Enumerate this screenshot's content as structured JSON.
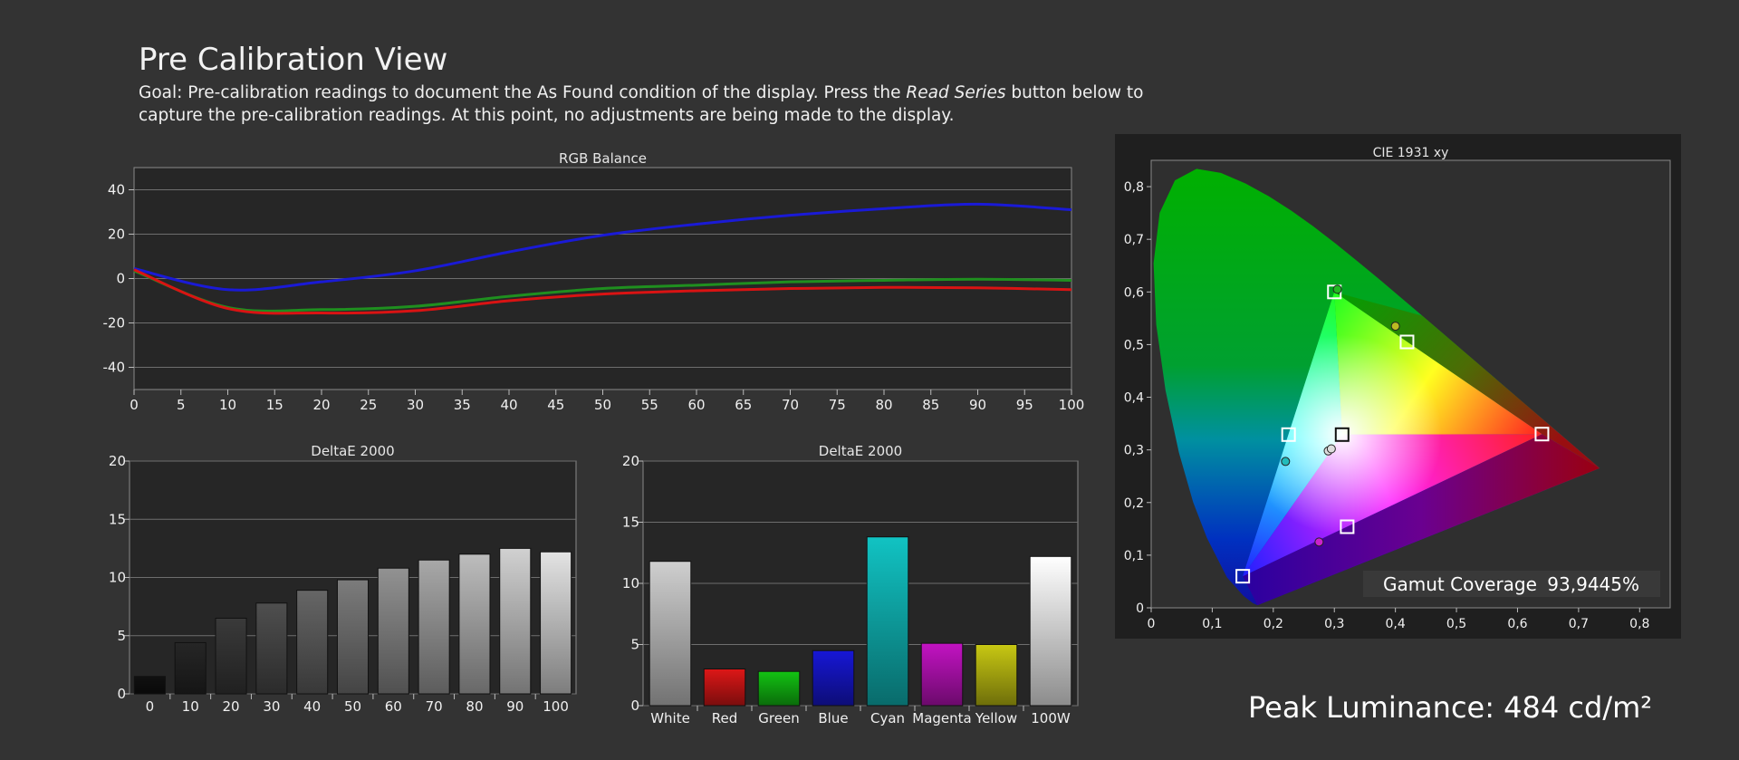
{
  "header": {
    "title": "Pre Calibration View",
    "goal_prefix": "Goal: Pre-calibration readings to document the As Found condition of the display. Press the ",
    "goal_emphasis": "Read Series",
    "goal_suffix": " button below to capture the pre-calibration readings. At this point, no adjustments are being made to the display."
  },
  "peak_luminance": {
    "label": "Peak Luminance:",
    "value": "484 cd/m²"
  },
  "chart_data": [
    {
      "id": "rgb_balance",
      "type": "line",
      "title": "RGB Balance",
      "x": [
        0,
        10,
        20,
        30,
        40,
        50,
        60,
        70,
        80,
        90,
        100
      ],
      "xticks": [
        0,
        5,
        10,
        15,
        20,
        25,
        30,
        35,
        40,
        45,
        50,
        55,
        60,
        65,
        70,
        75,
        80,
        85,
        90,
        95,
        100
      ],
      "xlim": [
        0,
        100
      ],
      "ylim": [
        -50,
        50
      ],
      "yticks": [
        40,
        20,
        0,
        -20,
        -40
      ],
      "grid": true,
      "series": [
        {
          "color": "#1a1ad6",
          "values": [
            4.5,
            -5,
            -1.5,
            3.5,
            12,
            19.5,
            24.5,
            28.5,
            31.5,
            33.5,
            31
          ]
        },
        {
          "color": "#1f8f1f",
          "values": [
            3.5,
            -13,
            -14,
            -12.5,
            -8,
            -4.5,
            -3,
            -1.5,
            -0.8,
            -0.3,
            -0.8
          ]
        },
        {
          "color": "#d91313",
          "values": [
            4,
            -13.5,
            -15.5,
            -14.5,
            -10,
            -7,
            -5.5,
            -4.5,
            -4,
            -4.2,
            -5
          ]
        }
      ]
    },
    {
      "id": "deltae_grayscale",
      "type": "bar",
      "title": "DeltaE 2000",
      "categories": [
        "0",
        "10",
        "20",
        "30",
        "40",
        "50",
        "60",
        "70",
        "80",
        "90",
        "100"
      ],
      "values": [
        1.5,
        4.4,
        6.5,
        7.8,
        8.9,
        9.8,
        10.8,
        11.5,
        12.0,
        12.5,
        12.2
      ],
      "bar_colors": [
        "#111111",
        "#262626",
        "#3a3a3a",
        "#4f4f4f",
        "#666666",
        "#7c7c7c",
        "#929292",
        "#a8a8a8",
        "#bdbdbd",
        "#d1d1d1",
        "#e3e3e3"
      ],
      "ylim": [
        0,
        20
      ],
      "yticks": [
        0,
        5,
        10,
        15,
        20
      ],
      "grid": true
    },
    {
      "id": "deltae_colors",
      "type": "bar",
      "title": "DeltaE 2000",
      "categories": [
        "White",
        "Red",
        "Green",
        "Blue",
        "Cyan",
        "Magenta",
        "Yellow",
        "100W"
      ],
      "values": [
        11.8,
        3.0,
        2.8,
        4.5,
        13.8,
        5.1,
        5.0,
        12.2
      ],
      "bar_colors": [
        "#cfcfcf",
        "#dd1717",
        "#13c313",
        "#1717d6",
        "#11c3c3",
        "#c313c3",
        "#c8c813",
        "#ffffff"
      ],
      "ylim": [
        0,
        20
      ],
      "yticks": [
        0,
        5,
        10,
        15,
        20
      ],
      "grid": true
    },
    {
      "id": "cie_1931",
      "type": "scatter",
      "title": "CIE 1931 xy",
      "xlim": [
        0,
        0.85
      ],
      "ylim": [
        0,
        0.85
      ],
      "xticks": [
        "0",
        "0,1",
        "0,2",
        "0,3",
        "0,4",
        "0,5",
        "0,6",
        "0,7",
        "0,8"
      ],
      "yticks": [
        "0",
        "0,1",
        "0,2",
        "0,3",
        "0,4",
        "0,5",
        "0,6",
        "0,7",
        "0,8"
      ],
      "targets": [
        {
          "x": 0.64,
          "y": 0.33
        },
        {
          "x": 0.3,
          "y": 0.6
        },
        {
          "x": 0.15,
          "y": 0.06
        },
        {
          "x": 0.225,
          "y": 0.329
        },
        {
          "x": 0.321,
          "y": 0.154
        },
        {
          "x": 0.419,
          "y": 0.505
        },
        {
          "x": 0.3127,
          "y": 0.329
        }
      ],
      "measured": [
        {
          "x": 0.305,
          "y": 0.605,
          "color": "#22bb22"
        },
        {
          "x": 0.4,
          "y": 0.535,
          "color": "#bbbb22"
        },
        {
          "x": 0.22,
          "y": 0.278,
          "color": "#22bbbb"
        },
        {
          "x": 0.29,
          "y": 0.298,
          "color": "#dddddd"
        },
        {
          "x": 0.295,
          "y": 0.302,
          "color": "#dddddd"
        },
        {
          "x": 0.275,
          "y": 0.125,
          "color": "#cc22cc"
        }
      ],
      "gamut_coverage_label": "Gamut Coverage",
      "gamut_coverage_value": "93,9445%"
    }
  ]
}
